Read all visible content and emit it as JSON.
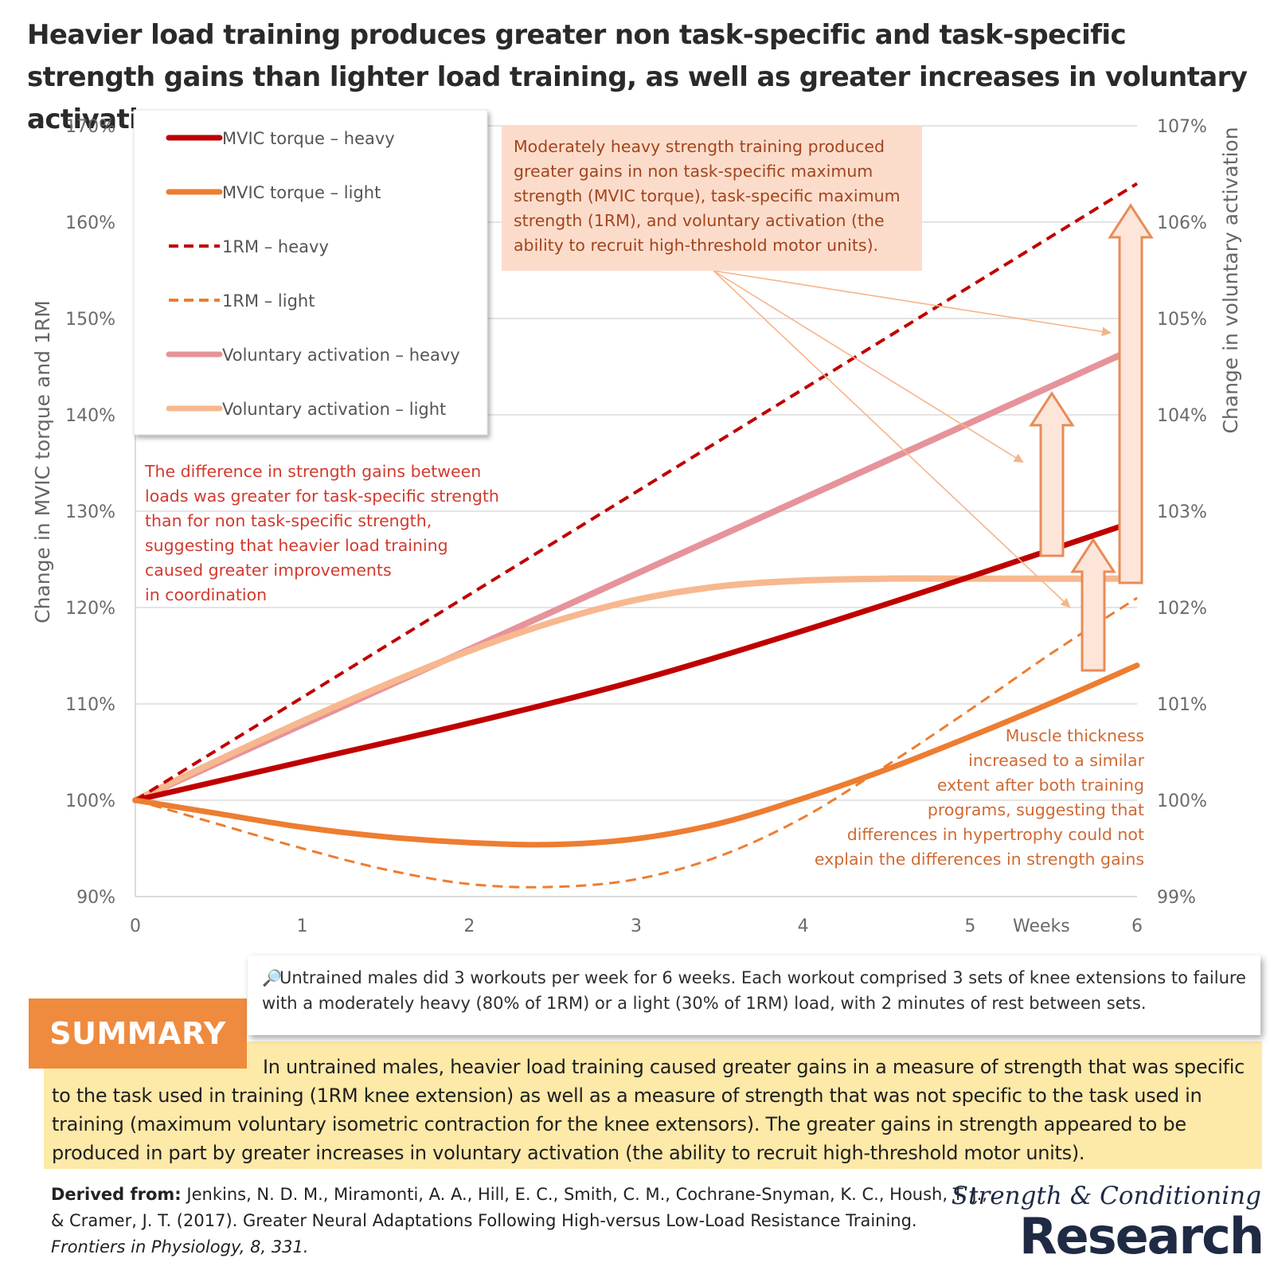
{
  "title": "Heavier load training produces greater non task-specific and task-specific strength gains than lighter load training, as well as greater increases in voluntary activation.",
  "chart_data": {
    "type": "line",
    "xlabel": "Weeks",
    "ylabel_left": "Change in MVIC torque and 1RM",
    "ylabel_right": "Change in voluntary activation",
    "xlim": [
      0,
      6
    ],
    "ylim_left": [
      90,
      170
    ],
    "ylim_right": [
      99,
      107
    ],
    "x_ticks": [
      "0",
      "1",
      "2",
      "3",
      "4",
      "5",
      "6"
    ],
    "y_ticks_left": [
      "90%",
      "100%",
      "110%",
      "120%",
      "130%",
      "140%",
      "150%",
      "160%",
      "170%"
    ],
    "y_ticks_right": [
      "99%",
      "100%",
      "101%",
      "102%",
      "103%",
      "104%",
      "105%",
      "106%",
      "107%"
    ],
    "grid": "horizontal",
    "legend_position": "top-left",
    "series": [
      {
        "name": "MVIC torque – heavy",
        "axis": "left",
        "color": "#c00000",
        "style": "solid",
        "width": 7,
        "x": [
          0,
          1,
          2,
          3,
          4,
          5,
          6
        ],
        "y": [
          100,
          104,
          108,
          112.4,
          117.6,
          123.2,
          129
        ]
      },
      {
        "name": "MVIC torque – light",
        "axis": "left",
        "color": "#ed7d31",
        "style": "solid",
        "width": 7,
        "x": [
          0,
          0.5,
          1,
          1.5,
          2,
          2.5,
          3,
          3.5,
          4,
          4.5,
          5,
          5.5,
          6
        ],
        "y": [
          100,
          98.6,
          97.2,
          96.2,
          95.6,
          95.4,
          96,
          97.6,
          100.2,
          103.2,
          106.6,
          110.2,
          114
        ]
      },
      {
        "name": "1RM – heavy",
        "axis": "left",
        "color": "#c00000",
        "style": "dashed",
        "width": 4,
        "x": [
          0,
          6
        ],
        "y": [
          100,
          164
        ]
      },
      {
        "name": "1RM – light",
        "axis": "left",
        "color": "#ed7d31",
        "style": "dashed",
        "width": 3,
        "x": [
          0,
          0.5,
          1,
          1.5,
          2,
          2.5,
          3,
          3.5,
          4,
          4.5,
          5,
          5.5,
          6
        ],
        "y": [
          100,
          97.5,
          95,
          92.8,
          91.3,
          91,
          91.8,
          94.2,
          98.2,
          103.6,
          109.4,
          115.4,
          121
        ]
      },
      {
        "name": "Voluntary activation – heavy",
        "axis": "right",
        "color": "#e6939a",
        "style": "solid",
        "width": 8,
        "x": [
          0,
          6
        ],
        "y": [
          100,
          104.7
        ]
      },
      {
        "name": "Voluntary activation – light",
        "axis": "right",
        "color": "#f7b88f",
        "style": "solid",
        "width": 8,
        "x": [
          0,
          0.5,
          1,
          1.5,
          2,
          2.5,
          3,
          3.5,
          4,
          4.5,
          5,
          5.5,
          6
        ],
        "y": [
          100,
          100.42,
          100.82,
          101.2,
          101.55,
          101.85,
          102.08,
          102.22,
          102.28,
          102.3,
          102.3,
          102.3,
          102.3
        ]
      }
    ],
    "annotations": {
      "top": [
        "Moderately heavy strength training produced",
        "greater gains in non task-specific maximum",
        "strength (MVIC torque), task-specific maximum",
        "strength (1RM), and voluntary activation (the",
        "ability to recruit high-threshold motor units)."
      ],
      "left": [
        "The difference in strength gains between",
        "loads was greater for task-specific strength",
        "than for non task-specific strength,",
        "suggesting that heavier load training",
        "caused greater improvements",
        "in coordination"
      ],
      "right": [
        "Muscle thickness",
        "increased to a similar",
        "extent after both training",
        "programs, suggesting that",
        "differences in hypertrophy could not",
        "explain the differences in strength gains"
      ]
    }
  },
  "design_note": "Untrained males did 3 workouts per week for 6 weeks. Each workout comprised 3 sets of knee extensions to failure with a moderately heavy (80% of 1RM) or a light (30% of 1RM) load, with 2 minutes of rest between sets.",
  "design_icon": "magnifier-icon",
  "summary": {
    "label": "SUMMARY",
    "text": "In untrained males, heavier load training caused greater gains in a measure of strength that was specific to the task used in training (1RM knee extension) as well as a measure of strength that was not specific to the task used in training (maximum voluntary isometric contraction for the knee extensors). The greater gains in strength appeared to be produced in part by greater increases in voluntary activation (the ability to recruit high-threshold motor units)."
  },
  "citation": {
    "label": "Derived from:",
    "text": " Jenkins, N. D. M., Miramonti, A. A., Hill, E. C., Smith, C. M., Cochrane-Snyman, K. C., Housh, T. J., & Cramer, J. T. (2017). Greater Neural Adaptations Following High-versus Low-Load Resistance Training. ",
    "journal": "Frontiers in Physiology, 8, 331."
  },
  "logo": {
    "line1": "Strength & Conditioning",
    "line2": "Research"
  }
}
